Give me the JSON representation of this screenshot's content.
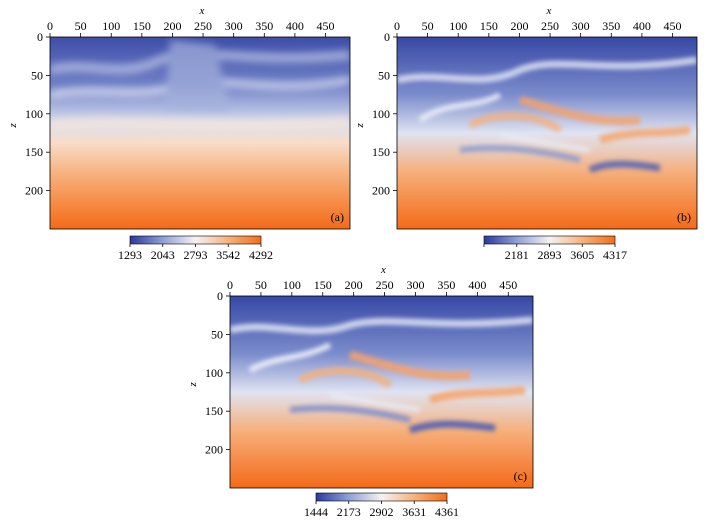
{
  "chart_data": [
    {
      "type": "heatmap",
      "panel_label": "(a)",
      "xlabel": "x",
      "ylabel": "z",
      "xlim": [
        0,
        490
      ],
      "ylim": [
        0,
        250
      ],
      "y_inverted": true,
      "x_axis_position": "top",
      "xticks": [
        0,
        50,
        100,
        150,
        200,
        250,
        300,
        350,
        400,
        450
      ],
      "yticks": [
        0,
        50,
        100,
        150,
        200
      ],
      "colormap": [
        "#2b3a9e",
        "#8f9fd6",
        "#f5f2f2",
        "#f6b27c",
        "#f46d1b"
      ],
      "colorbar": {
        "min": 1293,
        "max": 4292,
        "tick_labels": [
          "1293",
          "2043",
          "2793",
          "3542",
          "4292"
        ]
      },
      "description": "smooth layered velocity model, low values at top, high at bottom"
    },
    {
      "type": "heatmap",
      "panel_label": "(b)",
      "xlabel": "x",
      "ylabel": "z",
      "xlim": [
        0,
        490
      ],
      "ylim": [
        0,
        250
      ],
      "y_inverted": true,
      "x_axis_position": "top",
      "xticks": [
        0,
        50,
        100,
        150,
        200,
        250,
        300,
        350,
        400,
        450
      ],
      "yticks": [
        0,
        50,
        100,
        150,
        200
      ],
      "colormap": [
        "#2b3a9e",
        "#8f9fd6",
        "#f5f2f2",
        "#f6b27c",
        "#f46d1b"
      ],
      "colorbar": {
        "min": 1469,
        "max": 4317,
        "tick_labels": [
          "",
          "2181",
          "2893",
          "3605",
          "4317"
        ]
      },
      "description": "inverted velocity model with interleaved orange/blue layers"
    },
    {
      "type": "heatmap",
      "panel_label": "(c)",
      "xlabel": "x",
      "ylabel": "z",
      "xlim": [
        0,
        490
      ],
      "ylim": [
        0,
        250
      ],
      "y_inverted": true,
      "x_axis_position": "top",
      "xticks": [
        0,
        50,
        100,
        150,
        200,
        250,
        300,
        350,
        400,
        450
      ],
      "yticks": [
        0,
        50,
        100,
        150,
        200
      ],
      "colormap": [
        "#2b3a9e",
        "#8f9fd6",
        "#f5f2f2",
        "#f6b27c",
        "#f46d1b"
      ],
      "colorbar": {
        "min": 1444,
        "max": 4361,
        "tick_labels": [
          "1444",
          "2173",
          "2902",
          "3631",
          "4361"
        ]
      },
      "description": "inverted velocity model with stronger interleaved layers"
    }
  ]
}
